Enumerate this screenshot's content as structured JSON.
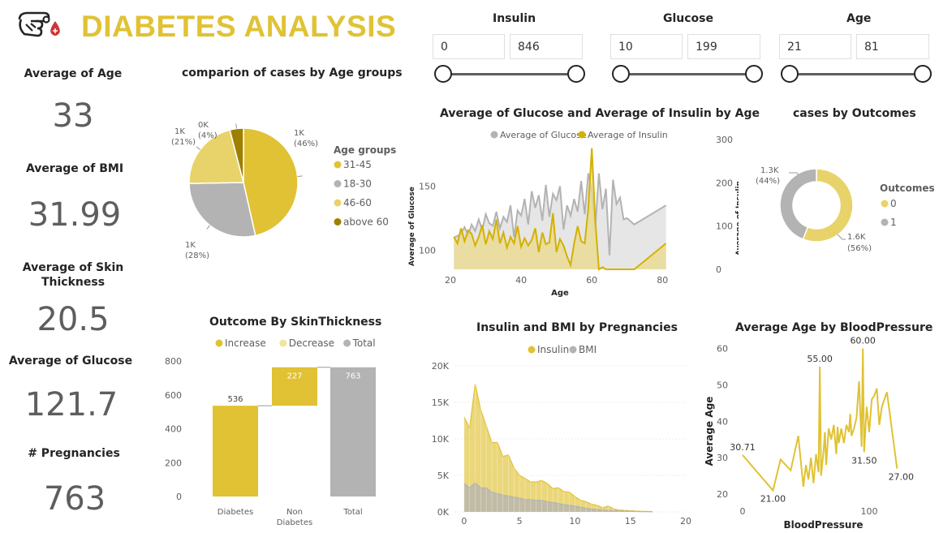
{
  "header": {
    "title": "DIABETES ANALYSIS",
    "logo_icon": "hand-blood-drop-icon"
  },
  "colors": {
    "gold": "#E0C234",
    "light_gold": "#E8D36A",
    "grey": "#B3B3B3",
    "dark_gold": "#9E7F00",
    "accent_red": "#D13438"
  },
  "slicers": [
    {
      "title": "Insulin",
      "min": "0",
      "max": "846"
    },
    {
      "title": "Glucose",
      "min": "10",
      "max": "199"
    },
    {
      "title": "Age",
      "min": "21",
      "max": "81"
    }
  ],
  "kpis": [
    {
      "label": "Average of Age",
      "value": "33"
    },
    {
      "label": "Average of BMI",
      "value": "31.99"
    },
    {
      "label": "Average of Skin Thickness",
      "value": "20.5"
    },
    {
      "label": "Average of Glucose",
      "value": "121.7"
    },
    {
      "label": "# Pregnancies",
      "value": "763"
    }
  ],
  "chart_titles": {
    "pie": "comparion of cases by Age groups",
    "line": "Average of Glucose and Average of Insulin by Age",
    "donut": "cases by Outcomes",
    "waterfall": "Outcome By SkinThickness",
    "bmi": "Insulin and BMI by Pregnancies",
    "bp": "Average Age by BloodPressure"
  },
  "chart_data": [
    {
      "type": "pie",
      "title": "comparion of cases by Age groups",
      "legend_title": "Age groups",
      "legend_position": "right",
      "slices": [
        {
          "label": "31-45",
          "value": 46,
          "display": "1K (46%)",
          "color": "#E0C234"
        },
        {
          "label": "18-30",
          "value": 28,
          "display": "1K (28%)",
          "color": "#B3B3B3"
        },
        {
          "label": "46-60",
          "value": 21,
          "display": "1K (21%)",
          "color": "#E8D36A"
        },
        {
          "label": "above 60",
          "value": 4,
          "display": "0K (4%)",
          "color": "#9E7F00"
        }
      ]
    },
    {
      "type": "line",
      "title": "Average of Glucose and Average of Insulin by Age",
      "xlabel": "Age",
      "ylabel": "Average of Glucose",
      "y2label": "Average of Insulin",
      "legend_position": "top",
      "x_ticks": [
        20,
        40,
        60,
        80
      ],
      "y_ticks": [
        100,
        150
      ],
      "y2_ticks": [
        0,
        100,
        200,
        300
      ],
      "xlim": [
        20,
        82
      ],
      "ylim": [
        85,
        175
      ],
      "y2lim": [
        0,
        300
      ],
      "series": [
        {
          "name": "Average of Glucose",
          "axis": "y",
          "color": "#B3B3B3",
          "x": [
            21,
            22,
            23,
            24,
            25,
            26,
            27,
            28,
            29,
            30,
            31,
            32,
            33,
            34,
            35,
            36,
            37,
            38,
            39,
            40,
            41,
            42,
            43,
            44,
            45,
            46,
            47,
            48,
            49,
            50,
            51,
            52,
            53,
            54,
            55,
            56,
            57,
            58,
            59,
            60,
            61,
            62,
            63,
            64,
            65,
            66,
            67,
            68,
            69,
            70,
            72,
            81
          ],
          "y": [
            110,
            111,
            113,
            118,
            112,
            120,
            115,
            124,
            116,
            128,
            121,
            119,
            130,
            117,
            126,
            122,
            135,
            110,
            131,
            127,
            140,
            120,
            146,
            133,
            143,
            123,
            151,
            126,
            144,
            139,
            150,
            116,
            135,
            127,
            140,
            130,
            154,
            128,
            160,
            146,
            118,
            160,
            132,
            148,
            96,
            155,
            136,
            141,
            124,
            125,
            120,
            135
          ]
        },
        {
          "name": "Average of Insulin",
          "axis": "y2",
          "color": "#D4B100",
          "x": [
            21,
            22,
            23,
            24,
            25,
            26,
            27,
            28,
            29,
            30,
            31,
            32,
            33,
            34,
            35,
            36,
            37,
            38,
            39,
            40,
            41,
            42,
            43,
            44,
            45,
            46,
            47,
            48,
            49,
            50,
            51,
            52,
            53,
            54,
            55,
            56,
            57,
            58,
            59,
            60,
            61,
            62,
            63,
            64,
            65,
            66,
            67,
            68,
            69,
            70,
            72,
            81
          ],
          "y": [
            75,
            60,
            95,
            65,
            90,
            82,
            55,
            75,
            102,
            58,
            88,
            70,
            115,
            60,
            85,
            50,
            75,
            60,
            100,
            52,
            72,
            55,
            68,
            95,
            40,
            85,
            58,
            62,
            130,
            40,
            70,
            55,
            30,
            10,
            60,
            100,
            65,
            60,
            140,
            280,
            110,
            0,
            5,
            0,
            0,
            0,
            0,
            0,
            0,
            0,
            0,
            60
          ]
        }
      ]
    },
    {
      "type": "pie",
      "subtype": "donut",
      "title": "cases by Outcomes",
      "legend_title": "Outcomes",
      "legend_position": "right",
      "slices": [
        {
          "label": "0",
          "value": 56,
          "display": "1.6K (56%)",
          "color": "#E8D36A"
        },
        {
          "label": "1",
          "value": 44,
          "display": "1.3K (44%)",
          "color": "#B3B3B3"
        }
      ]
    },
    {
      "type": "bar",
      "subtype": "waterfall",
      "title": "Outcome By SkinThickness",
      "legend_position": "top",
      "legend": [
        {
          "name": "Increase",
          "color": "#E0C234"
        },
        {
          "name": "Decrease",
          "color": "#F2E49A"
        },
        {
          "name": "Total",
          "color": "#B3B3B3"
        }
      ],
      "categories": [
        "Diabetes",
        "Non Diabetes",
        "Total"
      ],
      "values": [
        536,
        227,
        763
      ],
      "labels": [
        "536",
        "227",
        "763"
      ],
      "kinds": [
        "increase",
        "increase",
        "total"
      ],
      "y_ticks": [
        0,
        200,
        400,
        600,
        800
      ],
      "ylim": [
        0,
        800
      ]
    },
    {
      "type": "area",
      "title": "Insulin and BMI by Pregnancies",
      "legend_position": "top",
      "x_ticks": [
        0,
        5,
        10,
        15,
        20
      ],
      "y_tick_labels": [
        "0K",
        "5K",
        "10K",
        "15K",
        "20K"
      ],
      "xlim": [
        -0.5,
        20
      ],
      "ylim": [
        0,
        20000
      ],
      "series": [
        {
          "name": "Insulin",
          "color": "#E0C234",
          "x": [
            0,
            0.5,
            1,
            1.5,
            2,
            2.5,
            3,
            3.5,
            4,
            4.5,
            5,
            5.5,
            6,
            6.5,
            7,
            7.5,
            8,
            8.5,
            9,
            9.5,
            10,
            10.5,
            11,
            11.5,
            12,
            12.5,
            13,
            13.5,
            14,
            15,
            16,
            17
          ],
          "y": [
            13000,
            11500,
            17500,
            14000,
            11800,
            9500,
            9500,
            7600,
            7800,
            6000,
            5000,
            4600,
            4100,
            4100,
            4300,
            3900,
            3200,
            3300,
            2800,
            2700,
            2100,
            1600,
            1400,
            1050,
            900,
            550,
            800,
            400,
            250,
            150,
            80,
            40
          ]
        },
        {
          "name": "BMI",
          "color": "#B3B3B3",
          "x": [
            0,
            0.5,
            1,
            1.5,
            2,
            2.5,
            3,
            3.5,
            4,
            4.5,
            5,
            5.5,
            6,
            6.5,
            7,
            7.5,
            8,
            8.5,
            9,
            9.5,
            10,
            10.5,
            11,
            11.5,
            12,
            12.5,
            13,
            13.5,
            14,
            15,
            16,
            17
          ],
          "y": [
            3900,
            3300,
            4000,
            3300,
            3300,
            2700,
            2500,
            2300,
            2200,
            2000,
            1900,
            1700,
            1700,
            1600,
            1600,
            1400,
            1300,
            1150,
            1000,
            900,
            800,
            650,
            500,
            400,
            320,
            250,
            200,
            150,
            120,
            80,
            40,
            20
          ]
        }
      ]
    },
    {
      "type": "line",
      "title": "Average Age by BloodPressure",
      "xlabel": "BloodPressure",
      "ylabel": "Average Age",
      "x_ticks": [
        0,
        100
      ],
      "y_ticks": [
        20,
        30,
        40,
        50,
        60
      ],
      "xlim": [
        0,
        125
      ],
      "ylim": [
        18,
        61
      ],
      "series": [
        {
          "name": "Average Age",
          "color": "#E0C234",
          "x": [
            0,
            24,
            30,
            38,
            44,
            46,
            48,
            50,
            52,
            54,
            56,
            58,
            60,
            61,
            62,
            64,
            65,
            66,
            68,
            70,
            72,
            74,
            75,
            76,
            78,
            80,
            82,
            84,
            85,
            86,
            88,
            90,
            92,
            94,
            95,
            96,
            98,
            100,
            102,
            104,
            106,
            108,
            110,
            114,
            122
          ],
          "y": [
            30.71,
            21.0,
            29.5,
            26.5,
            36.0,
            29.0,
            22.0,
            28.0,
            24.0,
            30.0,
            23.0,
            31.0,
            26.0,
            55.0,
            25.0,
            32.0,
            37.0,
            28.0,
            38.0,
            35.0,
            39.0,
            31.0,
            38.5,
            34.0,
            38.0,
            34.0,
            39.0,
            37.0,
            42.0,
            36.0,
            38.0,
            41.0,
            51.0,
            33.0,
            60.0,
            31.5,
            44.0,
            37.0,
            46.0,
            47.0,
            49.0,
            39.0,
            44.0,
            48.0,
            27.0
          ]
        }
      ],
      "data_labels": [
        {
          "x": 0,
          "y": 30.71,
          "text": "30.71"
        },
        {
          "x": 24,
          "y": 21.0,
          "text": "21.00"
        },
        {
          "x": 61,
          "y": 55.0,
          "text": "55.00"
        },
        {
          "x": 95,
          "y": 60.0,
          "text": "60.00"
        },
        {
          "x": 96,
          "y": 31.5,
          "text": "31.50"
        },
        {
          "x": 122,
          "y": 27.0,
          "text": "27.00"
        }
      ]
    }
  ]
}
